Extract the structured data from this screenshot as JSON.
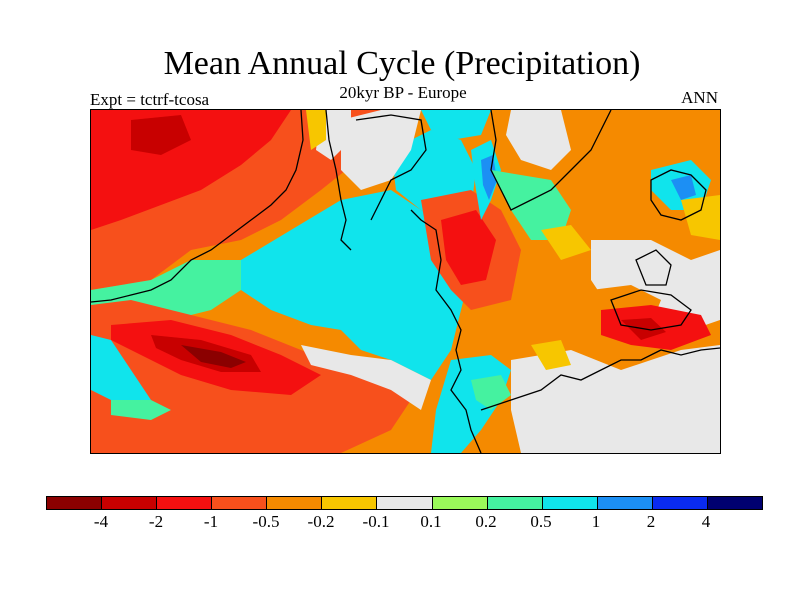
{
  "title": "Mean Annual Cycle (Precipitation)",
  "subtitle": "20kyr BP - Europe",
  "experiment_label": "Expt = tctrf-tcosa",
  "season_label": "ANN",
  "colors": {
    "c0": "#8b0000",
    "c1": "#c80000",
    "c2": "#f41010",
    "c3": "#f7501c",
    "c4": "#f58a00",
    "c5": "#f7c600",
    "c6": "#e8e8e8",
    "c7": "#9af95a",
    "c8": "#45f2a0",
    "c9": "#10e4ec",
    "c10": "#1c8ff4",
    "c11": "#0a2bf0",
    "c12": "#000070"
  },
  "colorbar": {
    "boxes": [
      "c0",
      "c1",
      "c2",
      "c3",
      "c4",
      "c5",
      "c6",
      "c7",
      "c8",
      "c9",
      "c10",
      "c11",
      "c12"
    ],
    "labels": [
      "-4",
      "-2",
      "-1",
      "-0.5",
      "-0.2",
      "-0.1",
      "0.1",
      "0.2",
      "0.5",
      "1",
      "2",
      "4"
    ]
  },
  "map_legend_range": "-4 to 4"
}
